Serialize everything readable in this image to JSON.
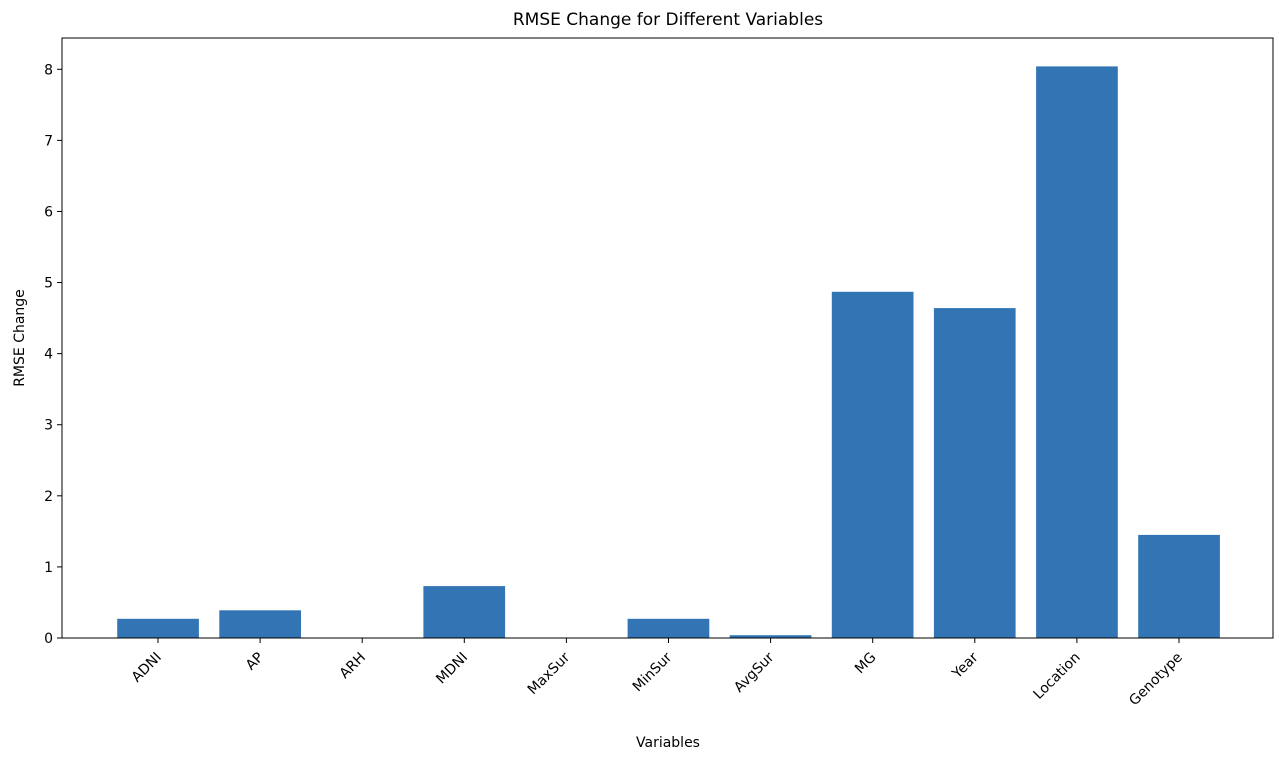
{
  "chart_data": {
    "type": "bar",
    "title": "RMSE Change for Different Variables",
    "xlabel": "Variables",
    "ylabel": "RMSE Change",
    "categories": [
      "ADNI",
      "AP",
      "ARH",
      "MDNI",
      "MaxSur",
      "MinSur",
      "AvgSur",
      "MG",
      "Year",
      "Location",
      "Genotype"
    ],
    "values": [
      0.27,
      0.39,
      0.0,
      0.73,
      0.0,
      0.27,
      0.04,
      4.87,
      4.64,
      8.04,
      1.45
    ],
    "ylim": [
      0,
      8.44
    ],
    "yticks": [
      0,
      1,
      2,
      3,
      4,
      5,
      6,
      7,
      8
    ],
    "bar_color": "#3274b4",
    "grid": false,
    "legend": "none",
    "xtick_rotation": "45"
  }
}
